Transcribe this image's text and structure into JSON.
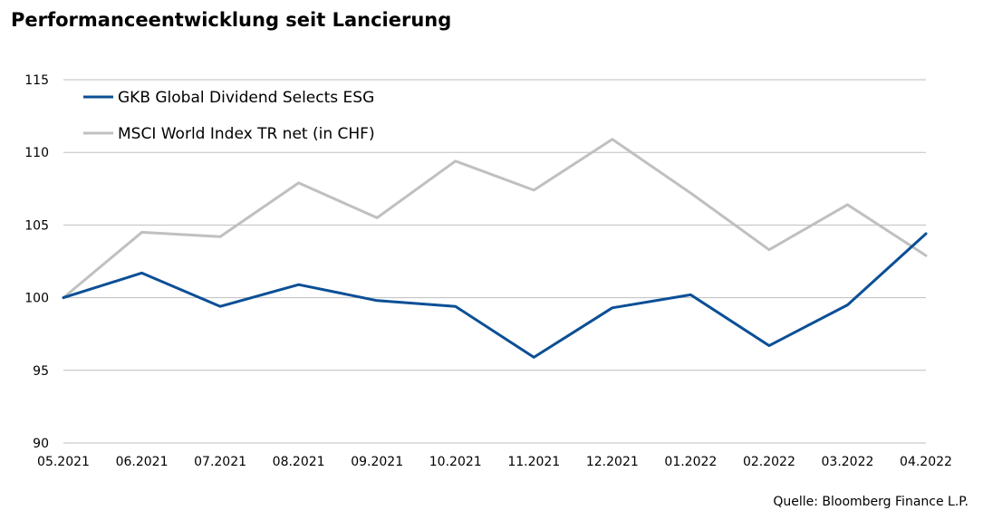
{
  "title": "Performanceentwicklung seit Lancierung",
  "source": "Quelle: Bloomberg Finance L.P.",
  "colors": {
    "series1": "#0b4f96",
    "series2": "#c0c0c0",
    "grid": "#bfbfbf"
  },
  "chart_data": {
    "type": "line",
    "title": "Performanceentwicklung seit Lancierung",
    "xlabel": "",
    "ylabel": "",
    "categories": [
      "05.2021",
      "06.2021",
      "07.2021",
      "08.2021",
      "09.2021",
      "10.2021",
      "11.2021",
      "12.2021",
      "01.2022",
      "02.2022",
      "03.2022",
      "04.2022"
    ],
    "ylim": [
      90,
      115
    ],
    "yticks": [
      90,
      95,
      100,
      105,
      110,
      115
    ],
    "grid": true,
    "legend_position": "top-left",
    "series": [
      {
        "name": "GKB Global Dividend Selects ESG",
        "color": "#0b4f96",
        "values": [
          100,
          101.7,
          99.4,
          100.9,
          99.8,
          99.4,
          95.9,
          99.3,
          100.2,
          96.7,
          99.5,
          104.4
        ]
      },
      {
        "name": "MSCI World Index TR net (in CHF)",
        "color": "#c0c0c0",
        "values": [
          100,
          104.5,
          104.2,
          107.9,
          105.5,
          109.4,
          107.4,
          110.9,
          107.2,
          103.3,
          106.4,
          102.9
        ]
      }
    ]
  }
}
